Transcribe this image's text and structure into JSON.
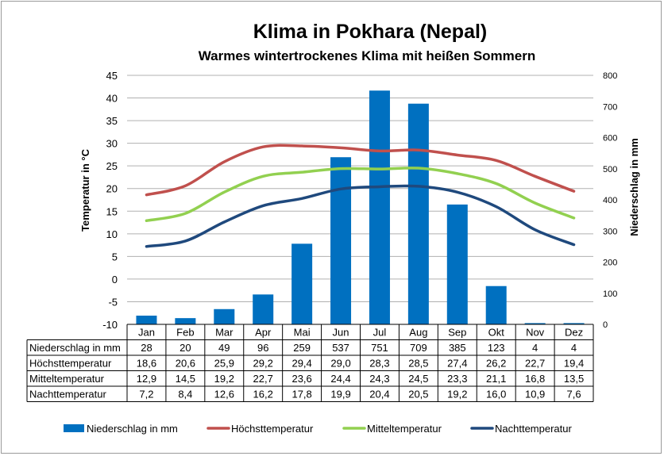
{
  "chart_data": {
    "type": "bar+line",
    "title": "Klima in Pokhara (Nepal)",
    "subtitle": "Warmes wintertrockenes Klima mit heißen Sommern",
    "categories": [
      "Jan",
      "Feb",
      "Mar",
      "Apr",
      "Mai",
      "Jun",
      "Jul",
      "Aug",
      "Sep",
      "Okt",
      "Nov",
      "Dez"
    ],
    "ylabel_left": "Temperatur in °C",
    "ylabel_right": "Niederschlag in mm",
    "ylim_left": [
      -10,
      45
    ],
    "ylim_right": [
      0,
      800
    ],
    "yticks_left": [
      "45",
      "40",
      "35",
      "30",
      "25",
      "20",
      "15",
      "10",
      "5",
      "0",
      "-5",
      "-10"
    ],
    "yticks_right": [
      "800",
      "700",
      "600",
      "500",
      "400",
      "300",
      "200",
      "100",
      "0"
    ],
    "series": [
      {
        "name": "Niederschlag in mm",
        "type": "bar",
        "axis": "right",
        "color": "#0070c0",
        "values": [
          28,
          20,
          49,
          96,
          259,
          537,
          751,
          709,
          385,
          123,
          4,
          4
        ],
        "labels": [
          "28",
          "20",
          "49",
          "96",
          "259",
          "537",
          "751",
          "709",
          "385",
          "123",
          "4",
          "4"
        ]
      },
      {
        "name": "Höchsttemperatur",
        "type": "line",
        "axis": "left",
        "color": "#c0504d",
        "values": [
          18.6,
          20.6,
          25.9,
          29.2,
          29.4,
          29.0,
          28.3,
          28.5,
          27.4,
          26.2,
          22.7,
          19.4
        ],
        "labels": [
          "18,6",
          "20,6",
          "25,9",
          "29,2",
          "29,4",
          "29,0",
          "28,3",
          "28,5",
          "27,4",
          "26,2",
          "22,7",
          "19,4"
        ]
      },
      {
        "name": "Mitteltemperatur",
        "type": "line",
        "axis": "left",
        "color": "#92d050",
        "values": [
          12.9,
          14.5,
          19.2,
          22.7,
          23.6,
          24.4,
          24.3,
          24.5,
          23.3,
          21.1,
          16.8,
          13.5
        ],
        "labels": [
          "12,9",
          "14,5",
          "19,2",
          "22,7",
          "23,6",
          "24,4",
          "24,3",
          "24,5",
          "23,3",
          "21,1",
          "16,8",
          "13,5"
        ]
      },
      {
        "name": "Nachttemperatur",
        "type": "line",
        "axis": "left",
        "color": "#1f497d",
        "values": [
          7.2,
          8.4,
          12.6,
          16.2,
          17.8,
          19.9,
          20.4,
          20.5,
          19.2,
          16.0,
          10.9,
          7.6
        ],
        "labels": [
          "7,2",
          "8,4",
          "12,6",
          "16,2",
          "17,8",
          "19,9",
          "20,4",
          "20,5",
          "19,2",
          "16,0",
          "10,9",
          "7,6"
        ]
      }
    ],
    "legend_position": "bottom",
    "gridlines": true,
    "data_table": true
  }
}
